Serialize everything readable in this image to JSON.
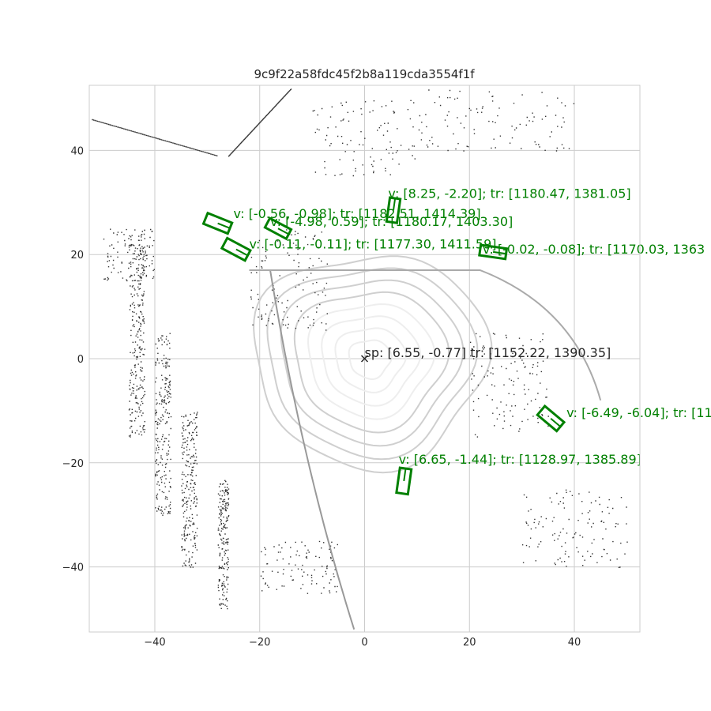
{
  "chart_data": {
    "type": "scatter",
    "title": "9c9f22a58fdc45f2b8a119cda3554f1f",
    "xlabel": "",
    "ylabel": "",
    "xlim": [
      -52.5,
      52.5
    ],
    "ylim": [
      -52.5,
      52.5
    ],
    "grid": true,
    "x_ticks": [
      -40,
      -20,
      0,
      20,
      40
    ],
    "y_ticks": [
      40,
      20,
      0,
      -20,
      -40
    ],
    "colors": {
      "box": "#008000",
      "label": "#008000",
      "ego": "#262626",
      "grid": "#cccccc",
      "points_dark": "#333333",
      "points_mid": "#888888",
      "points_light": "#cccccc"
    },
    "ego": {
      "x": 0,
      "y": 0,
      "marker": "x",
      "label": "sp: [6.55, -0.77] tr: [1152.22, 1390.35]"
    },
    "objects": [
      {
        "cx": 5.5,
        "cy": 28.5,
        "len": 4.6,
        "wid": 2.0,
        "angle": 82,
        "label": "v: [8.25, -2.20]; tr: [1180.47, 1381.05]",
        "lx": 4.5,
        "ly": 30.9
      },
      {
        "cx": -28.0,
        "cy": 26.0,
        "len": 5.0,
        "wid": 2.2,
        "angle": -22,
        "label": "v: [-0.56, -0.98]; tr: [1182.51, 1414.39]",
        "lx": -25.0,
        "ly": 27.0
      },
      {
        "cx": -16.5,
        "cy": 25.0,
        "len": 4.6,
        "wid": 2.0,
        "angle": -28,
        "label": "v: [-4.98, 0.59]; tr: [1180.17, 1403.30]",
        "lx": -18.0,
        "ly": 25.5
      },
      {
        "cx": -24.5,
        "cy": 21.0,
        "len": 5.0,
        "wid": 2.2,
        "angle": -28,
        "label": "v: [-0.11, -0.11]; tr: [1177.30, 1411.59]",
        "lx": -22.0,
        "ly": 21.2
      },
      {
        "cx": 24.5,
        "cy": 20.5,
        "len": 5.0,
        "wid": 2.0,
        "angle": -8,
        "label": "v: [-0.02, -0.08]; tr: [1170.03, 1363",
        "lx": 22.5,
        "ly": 20.2
      },
      {
        "cx": 35.5,
        "cy": -11.5,
        "len": 4.8,
        "wid": 2.2,
        "angle": -40,
        "label": "v: [-6.49, -6.04]; tr: [11",
        "lx": 38.5,
        "ly": -11.2
      },
      {
        "cx": 7.5,
        "cy": -23.5,
        "len": 4.8,
        "wid": 2.2,
        "angle": 82,
        "label": "v: [6.65, -1.44]; tr: [1128.97, 1385.89]",
        "lx": 6.5,
        "ly": -20.2
      }
    ]
  }
}
